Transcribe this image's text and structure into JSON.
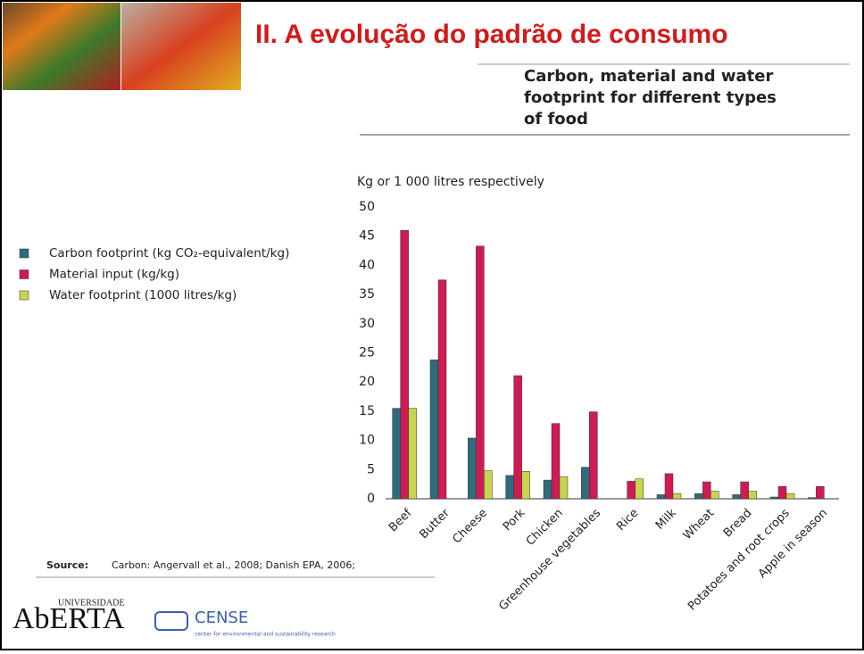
{
  "slide": {
    "title": "II. A evolução do padrão de consumo",
    "source_label": "Source:",
    "source_text": "Carbon: Angervall et al., 2008; Danish EPA, 2006;",
    "logo_top": "UNIVERSIDADE",
    "logo_main": "AbERTA",
    "logo_cense": "CENSE",
    "logo_cense_sub": "center for environmental and sustainability research"
  },
  "chart_data": {
    "type": "bar",
    "title": "Carbon, material and water footprint for different types of food",
    "y_label": "Kg or 1 000 litres respectively",
    "categories": [
      "Beef",
      "Butter",
      "Cheese",
      "Pork",
      "Chicken",
      "Greenhouse vegetables",
      "Rice",
      "Milk",
      "Wheat",
      "Bread",
      "Potatoes and root crops",
      "Apple in season"
    ],
    "series": [
      {
        "name": "Carbon footprint (kg CO₂-equivalent/kg)",
        "color": "#2f6b7c",
        "values": [
          15.5,
          23.8,
          10.4,
          4.0,
          3.2,
          5.4,
          null,
          0.7,
          0.9,
          0.7,
          0.3,
          0.2
        ]
      },
      {
        "name": "Material input (kg/kg)",
        "color": "#cf1a52",
        "values": [
          46.0,
          37.5,
          43.3,
          21.1,
          12.9,
          14.9,
          3.0,
          4.3,
          2.9,
          2.9,
          2.1,
          2.1
        ]
      },
      {
        "name": "Water footprint (1000 litres/kg)",
        "color": "#c8d44c",
        "values": [
          15.5,
          null,
          4.8,
          4.7,
          3.8,
          null,
          3.4,
          0.9,
          1.3,
          1.3,
          0.9,
          null
        ]
      }
    ],
    "ylim": [
      0,
      50
    ],
    "yticks": [
      0,
      5,
      10,
      15,
      20,
      25,
      30,
      35,
      40,
      45,
      50
    ],
    "grid": false
  }
}
